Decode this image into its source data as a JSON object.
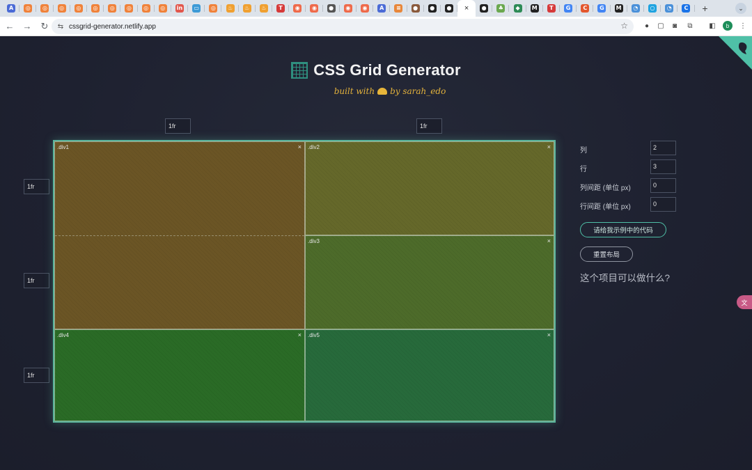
{
  "browser": {
    "tabs": [
      {
        "icon": "translate-icon",
        "glyph": "A",
        "color": "#4b6bd6"
      },
      {
        "icon": "orange-site-icon",
        "glyph": "◎",
        "color": "#f0823a"
      },
      {
        "icon": "orange-site-icon",
        "glyph": "◎",
        "color": "#f0823a"
      },
      {
        "icon": "orange-site-icon",
        "glyph": "◎",
        "color": "#f0823a"
      },
      {
        "icon": "orange-site-icon",
        "glyph": "◎",
        "color": "#f0823a"
      },
      {
        "icon": "orange-site-icon",
        "glyph": "◎",
        "color": "#f0823a"
      },
      {
        "icon": "orange-site-icon",
        "glyph": "◎",
        "color": "#f0823a"
      },
      {
        "icon": "orange-site-icon",
        "glyph": "◎",
        "color": "#f0823a"
      },
      {
        "icon": "orange-site-icon",
        "glyph": "◎",
        "color": "#f0823a"
      },
      {
        "icon": "orange-site-icon",
        "glyph": "◎",
        "color": "#f0823a"
      },
      {
        "icon": "red-site-icon",
        "glyph": "in",
        "color": "#e2574c"
      },
      {
        "icon": "monitor-icon",
        "glyph": "▭",
        "color": "#3c9ad6"
      },
      {
        "icon": "orange-site-icon",
        "glyph": "◎",
        "color": "#f0823a"
      },
      {
        "icon": "fire-icon",
        "glyph": "♨",
        "color": "#f0a030"
      },
      {
        "icon": "fire-icon",
        "glyph": "♨",
        "color": "#f0a030"
      },
      {
        "icon": "fire-icon",
        "glyph": "♨",
        "color": "#f0a030"
      },
      {
        "icon": "t-icon",
        "glyph": "T",
        "color": "#d63a3a"
      },
      {
        "icon": "red-site-icon",
        "glyph": "◉",
        "color": "#ef6a4a"
      },
      {
        "icon": "red-site-icon",
        "glyph": "◉",
        "color": "#ef6a4a"
      },
      {
        "icon": "globe-icon",
        "glyph": "●",
        "color": "#555555"
      },
      {
        "icon": "red-site-icon",
        "glyph": "◉",
        "color": "#ef6a4a"
      },
      {
        "icon": "red-site-icon",
        "glyph": "◉",
        "color": "#ef6a4a"
      },
      {
        "icon": "translate-icon",
        "glyph": "A",
        "color": "#4b6bd6"
      },
      {
        "icon": "lines-icon",
        "glyph": "≡",
        "color": "#e8873a"
      },
      {
        "icon": "avatar-icon",
        "glyph": "●",
        "color": "#8a5a3c"
      },
      {
        "icon": "github-icon",
        "glyph": "●",
        "color": "#222222"
      },
      {
        "icon": "github-icon",
        "glyph": "●",
        "color": "#222222"
      },
      {
        "icon": "close-icon",
        "glyph": "×",
        "color": "#ffffff",
        "active": true
      },
      {
        "icon": "github-icon",
        "glyph": "●",
        "color": "#222222"
      },
      {
        "icon": "plant-icon",
        "glyph": "♣",
        "color": "#6aa84f"
      },
      {
        "icon": "shield-icon",
        "glyph": "◆",
        "color": "#2e8b57"
      },
      {
        "icon": "m-icon",
        "glyph": "M",
        "color": "#222222"
      },
      {
        "icon": "t-icon",
        "glyph": "T",
        "color": "#d63a3a"
      },
      {
        "icon": "google-icon",
        "glyph": "G",
        "color": "#4285f4"
      },
      {
        "icon": "c-icon",
        "glyph": "C",
        "color": "#e4572e"
      },
      {
        "icon": "google-icon",
        "glyph": "G",
        "color": "#4285f4"
      },
      {
        "icon": "m-icon",
        "glyph": "M",
        "color": "#222222"
      },
      {
        "icon": "bird-icon",
        "glyph": "◔",
        "color": "#4a90d9"
      },
      {
        "icon": "circle-icon",
        "glyph": "○",
        "color": "#1fa3e0"
      },
      {
        "icon": "bird-icon",
        "glyph": "◔",
        "color": "#4a90d9"
      },
      {
        "icon": "c-blue-icon",
        "glyph": "C",
        "color": "#1a73e8"
      }
    ],
    "url": "cssgrid-generator.netlify.app"
  },
  "header": {
    "title": "CSS Grid Generator",
    "byline_prefix": "built with",
    "byline_suffix": "by sarah_edo"
  },
  "grid": {
    "column_sizes": [
      "1fr",
      "1fr"
    ],
    "row_sizes": [
      "1fr",
      "1fr",
      "1fr"
    ],
    "cells": [
      {
        "label": ".div1",
        "close": "×",
        "color": "#6b5525"
      },
      {
        "label": ".div2",
        "close": "×",
        "color": "#65682a"
      },
      {
        "label": ".div3",
        "close": "×",
        "color": "#4d6b2a"
      },
      {
        "label": ".div4",
        "close": "×",
        "color": "#2a6b26"
      },
      {
        "label": ".div5",
        "close": "×",
        "color": "#276a3b"
      }
    ],
    "border_color": "#5ab59b"
  },
  "controls": {
    "columns_label": "列",
    "columns_value": "2",
    "rows_label": "行",
    "rows_value": "3",
    "column_gap_label": "列间距 (单位 px)",
    "column_gap_value": "0",
    "row_gap_label": "行间距 (单位 px)",
    "row_gap_value": "0",
    "code_button": "请给我示例中的代码",
    "reset_button": "重置布局",
    "question": "这个项目可以做什么?"
  },
  "accent_color": "#4fc0a7"
}
